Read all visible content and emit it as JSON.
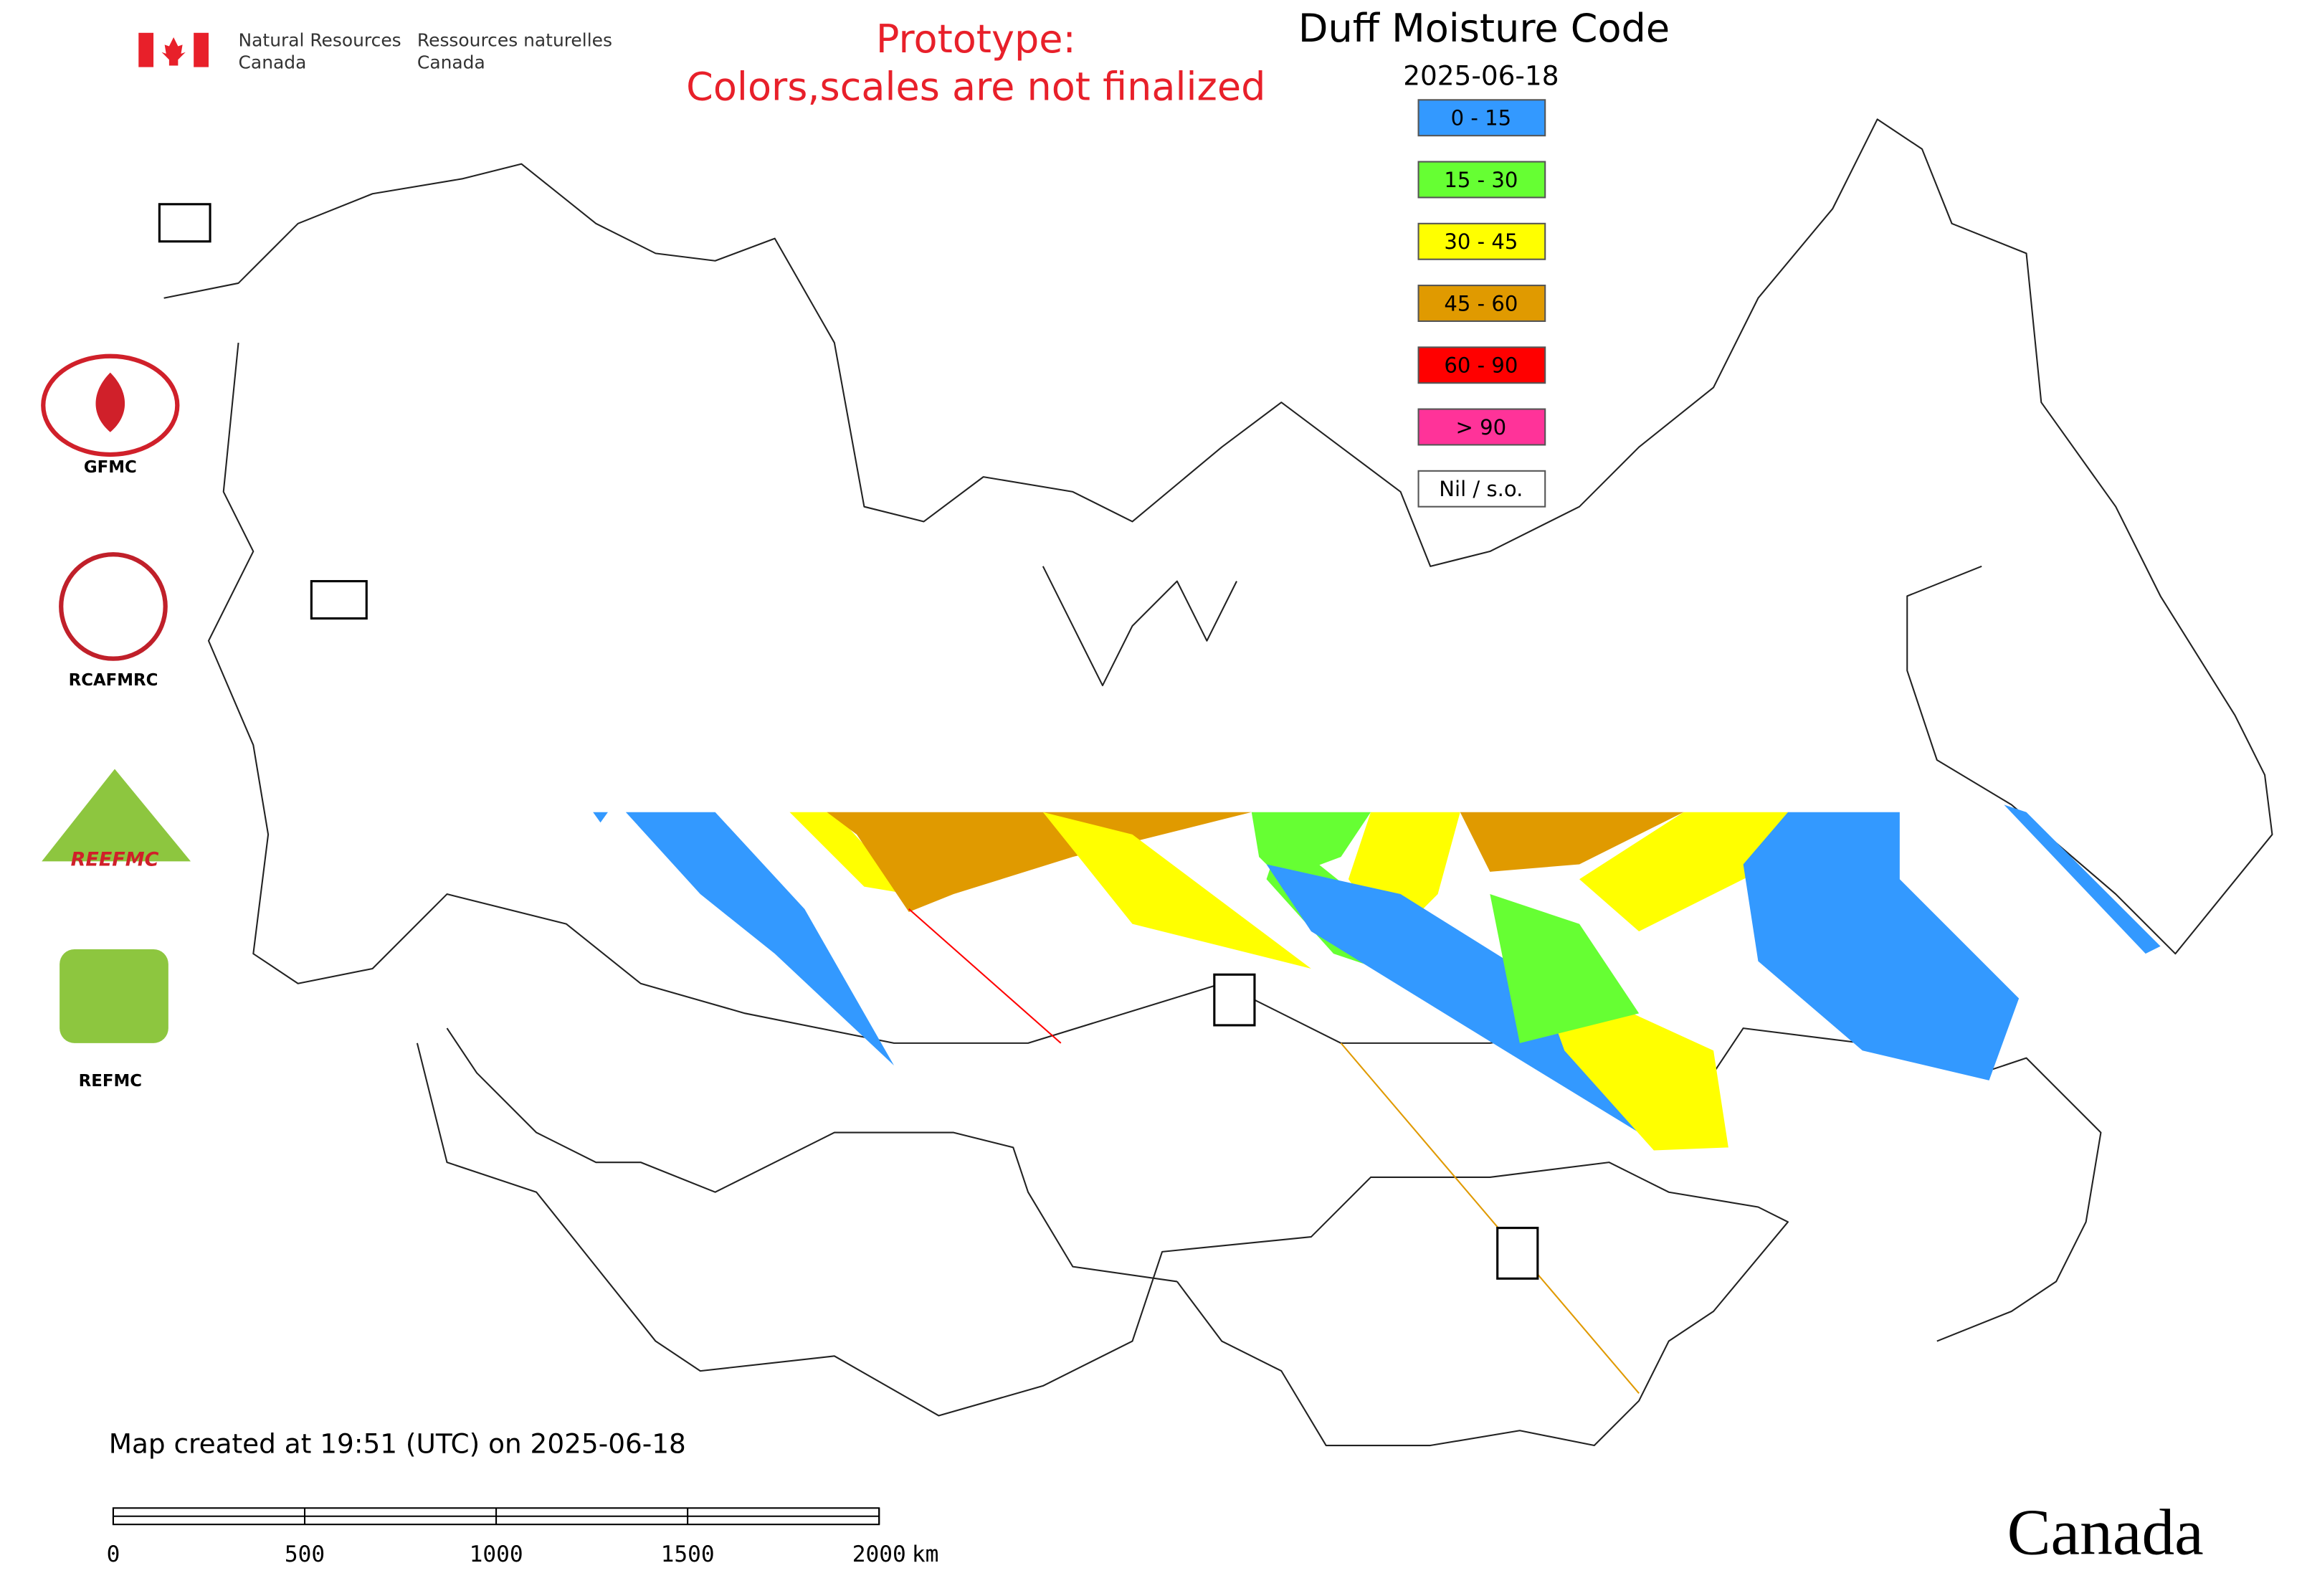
{
  "header": {
    "agency_en": [
      "Natural Resources",
      "Canada"
    ],
    "agency_fr": [
      "Ressources naturelles",
      "Canada"
    ],
    "prototype_note": [
      "Prototype:",
      "Colors,scales are not finalized"
    ]
  },
  "title": "Duff Moisture Code",
  "date": "2025-06-18",
  "legend": [
    {
      "label": "0 - 15",
      "color": "#3399ff"
    },
    {
      "label": "15 - 30",
      "color": "#66ff33"
    },
    {
      "label": "30 - 45",
      "color": "#ffff00"
    },
    {
      "label": "45 - 60",
      "color": "#e09a00"
    },
    {
      "label": "60 - 90",
      "color": "#ff0000"
    },
    {
      "label": "> 90",
      "color": "#ff3399"
    },
    {
      "label": "Nil / s.o.",
      "color": "#ffffff"
    }
  ],
  "logos": [
    "GFMC",
    "RCAFMRC",
    "REEFMC",
    "REFMC"
  ],
  "footer": {
    "created": "Map created at 19:51 (UTC) on 2025-06-18",
    "scale_ticks": [
      0,
      500,
      1000,
      1500,
      2000
    ],
    "scale_unit": "km",
    "wordmark": "Canada"
  }
}
